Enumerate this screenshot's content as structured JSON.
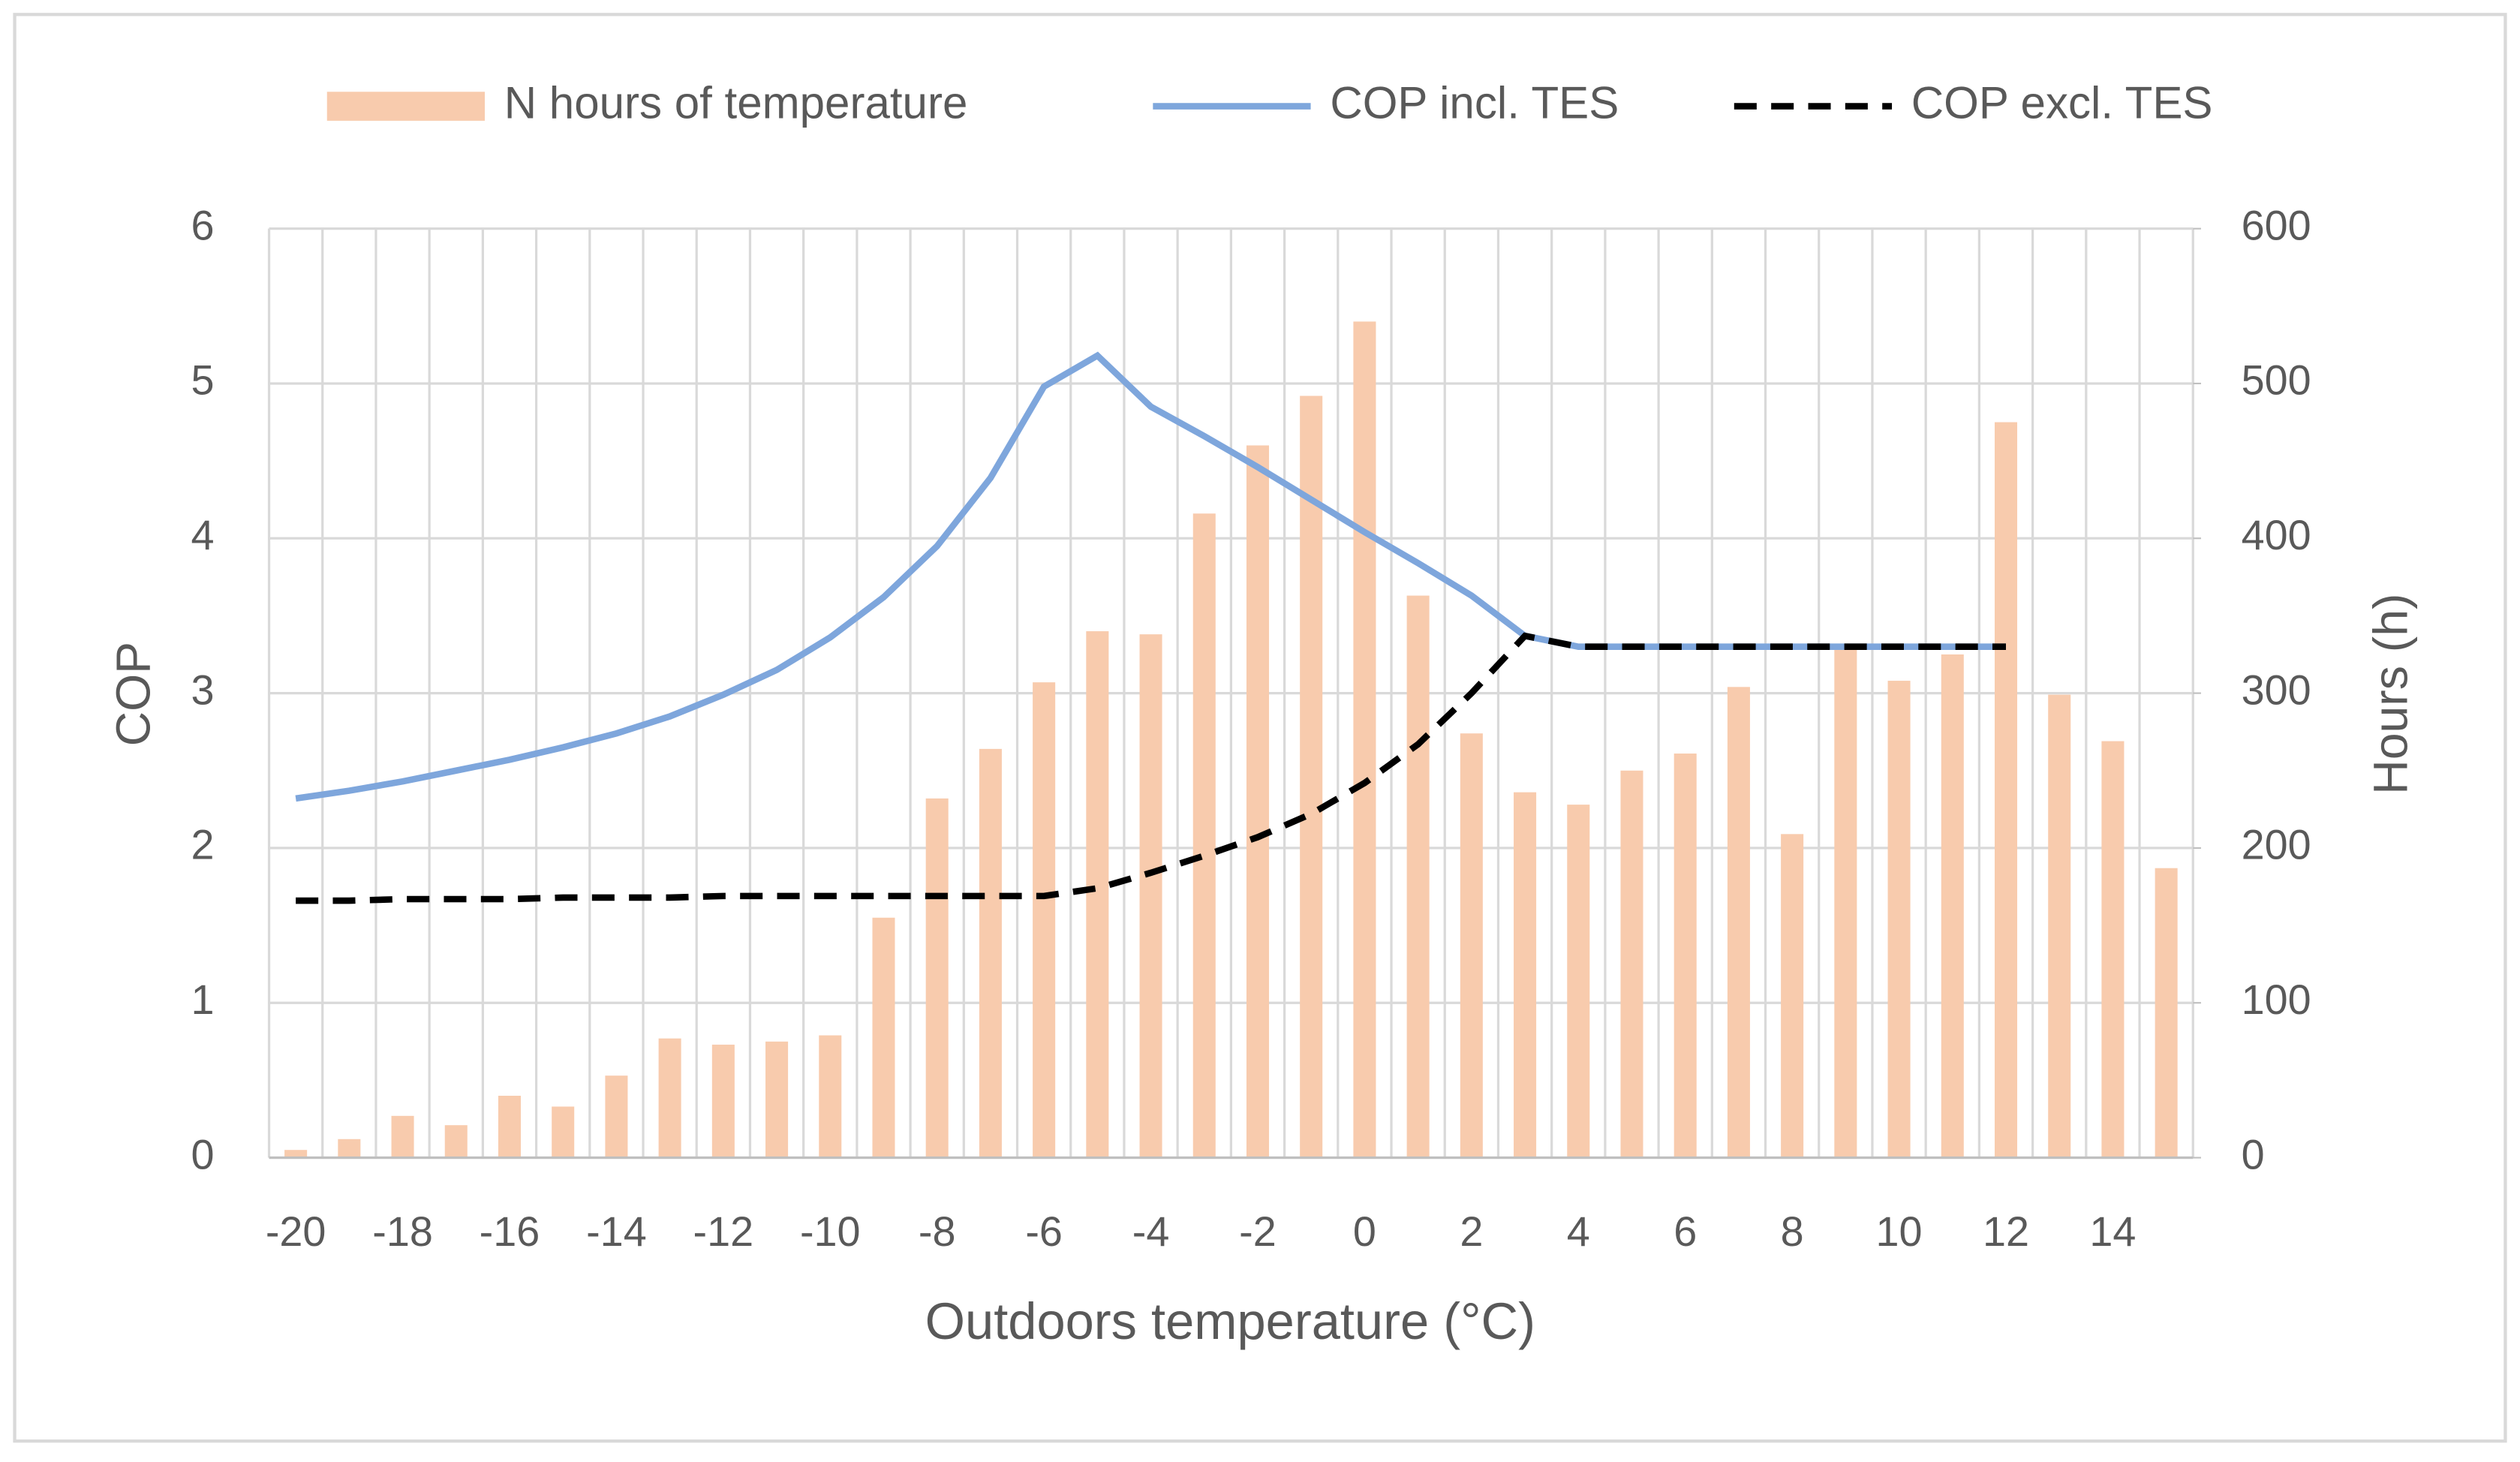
{
  "chart_data": {
    "type": "bar_line",
    "x_label": "Outdoors temperature (°C)",
    "y_label": "COP",
    "y2_label": "Hours (h)",
    "categories": [
      -20,
      null,
      -18,
      null,
      -16,
      null,
      -14,
      null,
      -12,
      null,
      -10,
      null,
      -8,
      null,
      -6,
      null,
      -4,
      null,
      -2,
      null,
      0,
      null,
      2,
      null,
      4,
      null,
      6,
      null,
      8,
      null,
      10,
      null,
      12,
      null,
      14,
      null
    ],
    "series": [
      {
        "name": "N hours of temperature",
        "type": "bar",
        "axis": "y2",
        "color": "#f8cbad",
        "values": [
          5,
          12,
          27,
          21,
          40,
          33,
          53,
          77,
          73,
          75,
          79,
          155,
          232,
          264,
          307,
          340,
          338,
          416,
          460,
          492,
          540,
          363,
          274,
          236,
          228,
          250,
          261,
          304,
          209,
          330,
          308,
          325,
          475,
          299,
          269,
          187
        ]
      },
      {
        "name": "COP incl. TES",
        "type": "line",
        "color": "#7ea6dc",
        "dash": false,
        "values": [
          2.32,
          2.37,
          2.43,
          2.5,
          2.57,
          2.65,
          2.74,
          2.85,
          2.99,
          3.15,
          3.36,
          3.62,
          3.95,
          4.39,
          4.98,
          5.18,
          4.85,
          4.66,
          4.46,
          4.25,
          4.04,
          3.84,
          3.63,
          3.37,
          3.3,
          3.3,
          3.3,
          3.3,
          3.3,
          3.3,
          3.3,
          3.3,
          3.3,
          null,
          null,
          null
        ]
      },
      {
        "name": "COP excl. TES",
        "type": "line",
        "color": "#000000",
        "dash": true,
        "values": [
          1.66,
          1.66,
          1.67,
          1.67,
          1.67,
          1.68,
          1.68,
          1.68,
          1.69,
          1.69,
          1.69,
          1.69,
          1.69,
          1.69,
          1.69,
          1.74,
          1.84,
          1.95,
          2.07,
          2.22,
          2.42,
          2.67,
          3.0,
          3.37,
          3.3,
          3.3,
          3.3,
          3.3,
          3.3,
          3.3,
          3.3,
          3.3,
          3.3,
          null,
          null,
          null
        ]
      }
    ],
    "ylim": [
      0,
      6
    ],
    "yticks": [
      0,
      1,
      2,
      3,
      4,
      5,
      6
    ],
    "y2lim": [
      0,
      600
    ],
    "y2ticks": [
      0,
      100,
      200,
      300,
      400,
      500,
      600
    ],
    "grid": true,
    "legend": "top"
  }
}
